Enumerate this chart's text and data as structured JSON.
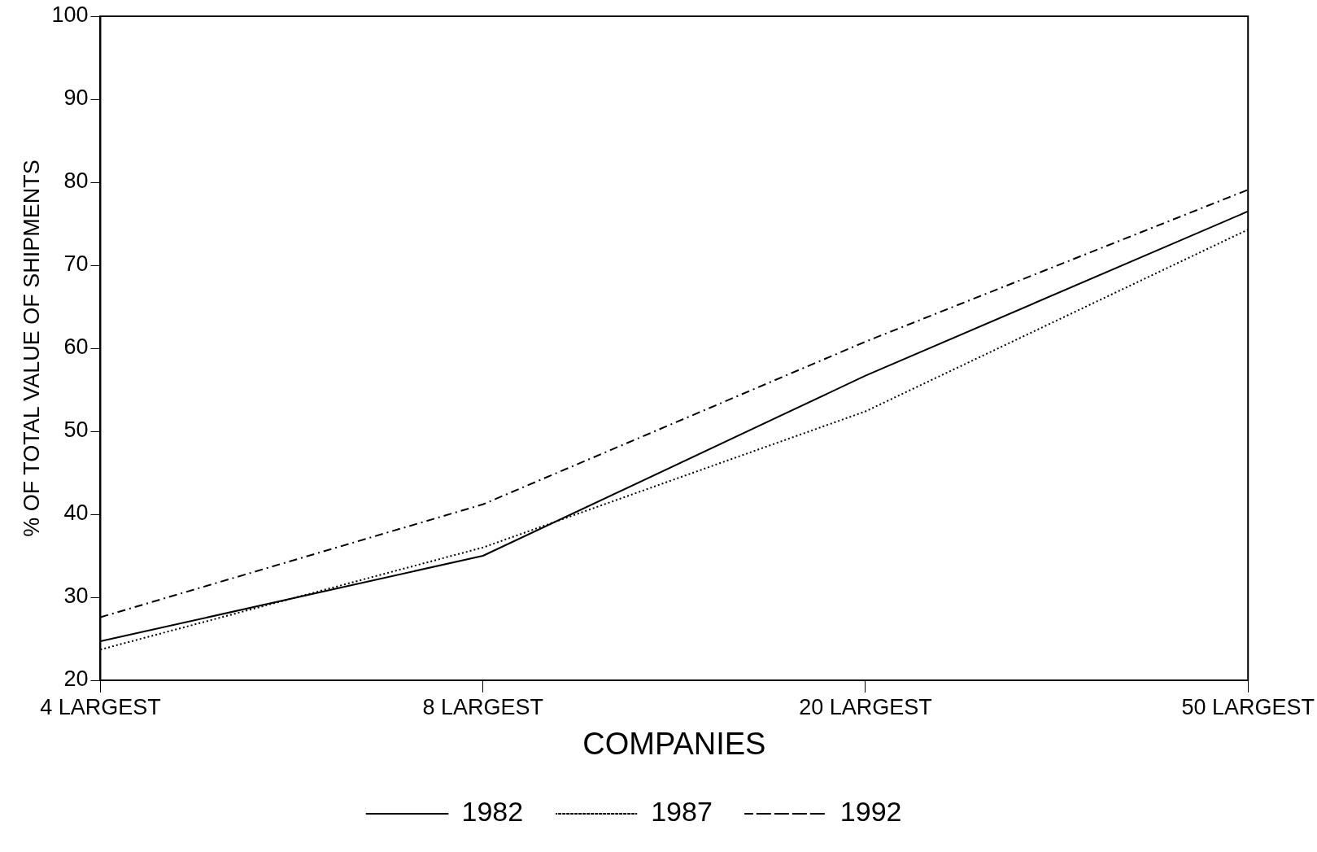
{
  "chart_data": {
    "type": "line",
    "xlabel": "COMPANIES",
    "ylabel": "% OF TOTAL VALUE OF SHIPMENTS",
    "categories": [
      "4 LARGEST",
      "8 LARGEST",
      "20 LARGEST",
      "50 LARGEST"
    ],
    "series": [
      {
        "name": "1982",
        "color": "#000000",
        "line_style": "solid",
        "values": [
          24.7,
          35,
          56.7,
          76.5
        ]
      },
      {
        "name": "1987",
        "color": "#000000",
        "line_style": "dotted",
        "values": [
          23.7,
          36,
          52.4,
          74.3
        ]
      },
      {
        "name": "1992",
        "color": "#000000",
        "line_style": "dashed",
        "values": [
          27.6,
          41.2,
          60.8,
          79.1
        ]
      }
    ],
    "ylim": [
      20,
      100
    ],
    "yticks": [
      20,
      30,
      40,
      50,
      60,
      70,
      80,
      90,
      100
    ],
    "grid": false,
    "legend": "bottom",
    "marker": "none"
  }
}
